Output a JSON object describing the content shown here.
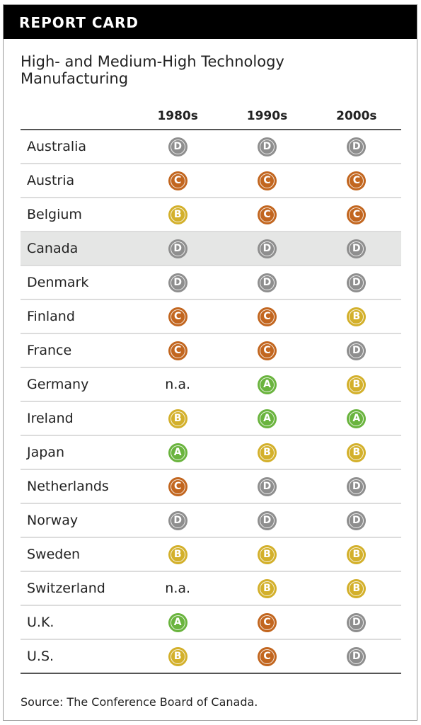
{
  "header": {
    "title": "REPORT CARD"
  },
  "subtitle": "High- and Medium-High Technology Manufacturing",
  "table": {
    "columns": [
      "1980s",
      "1990s",
      "2000s"
    ],
    "highlight_row": "Canada",
    "rows": [
      {
        "country": "Australia",
        "grades": [
          "D",
          "D",
          "D"
        ]
      },
      {
        "country": "Austria",
        "grades": [
          "C",
          "C",
          "C"
        ]
      },
      {
        "country": "Belgium",
        "grades": [
          "B",
          "C",
          "C"
        ]
      },
      {
        "country": "Canada",
        "grades": [
          "D",
          "D",
          "D"
        ]
      },
      {
        "country": "Denmark",
        "grades": [
          "D",
          "D",
          "D"
        ]
      },
      {
        "country": "Finland",
        "grades": [
          "C",
          "C",
          "B"
        ]
      },
      {
        "country": "France",
        "grades": [
          "C",
          "C",
          "D"
        ]
      },
      {
        "country": "Germany",
        "grades": [
          "n.a.",
          "A",
          "B"
        ]
      },
      {
        "country": "Ireland",
        "grades": [
          "B",
          "A",
          "A"
        ]
      },
      {
        "country": "Japan",
        "grades": [
          "A",
          "B",
          "B"
        ]
      },
      {
        "country": "Netherlands",
        "grades": [
          "C",
          "D",
          "D"
        ]
      },
      {
        "country": "Norway",
        "grades": [
          "D",
          "D",
          "D"
        ]
      },
      {
        "country": "Sweden",
        "grades": [
          "B",
          "B",
          "B"
        ]
      },
      {
        "country": "Switzerland",
        "grades": [
          "n.a.",
          "B",
          "B"
        ]
      },
      {
        "country": "U.K.",
        "grades": [
          "A",
          "C",
          "D"
        ]
      },
      {
        "country": "U.S.",
        "grades": [
          "B",
          "C",
          "D"
        ]
      }
    ]
  },
  "grade_colors": {
    "A": "#6ab43e",
    "B": "#d3b02b",
    "C": "#c2661f",
    "D": "#8e8e8e"
  },
  "source": "Source: The Conference Board of Canada."
}
